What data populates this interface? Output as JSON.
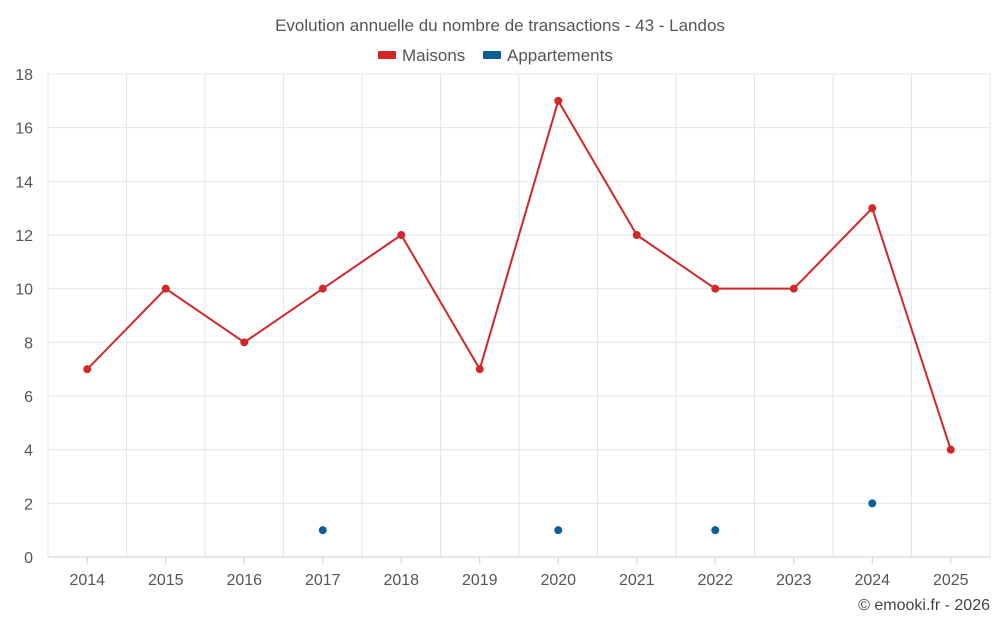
{
  "chart_data": {
    "type": "line",
    "title": "Evolution annuelle du nombre de transactions - 43 - Landos",
    "categories": [
      "2014",
      "2015",
      "2016",
      "2017",
      "2018",
      "2019",
      "2020",
      "2021",
      "2022",
      "2023",
      "2024",
      "2025"
    ],
    "series": [
      {
        "name": "Maisons",
        "color": "#d32626",
        "values": [
          7,
          10,
          8,
          10,
          12,
          7,
          17,
          12,
          10,
          10,
          13,
          4
        ]
      },
      {
        "name": "Appartements",
        "color": "#0a5f96",
        "values": [
          null,
          null,
          null,
          1,
          null,
          null,
          1,
          null,
          1,
          null,
          2,
          null
        ]
      }
    ],
    "ylim": [
      0,
      18
    ],
    "yticks": [
      0,
      2,
      4,
      6,
      8,
      10,
      12,
      14,
      16,
      18
    ],
    "xlabel": "",
    "ylabel": "",
    "grid": true,
    "legend": "top-center"
  },
  "footer": {
    "credit": "© emooki.fr - 2026"
  }
}
